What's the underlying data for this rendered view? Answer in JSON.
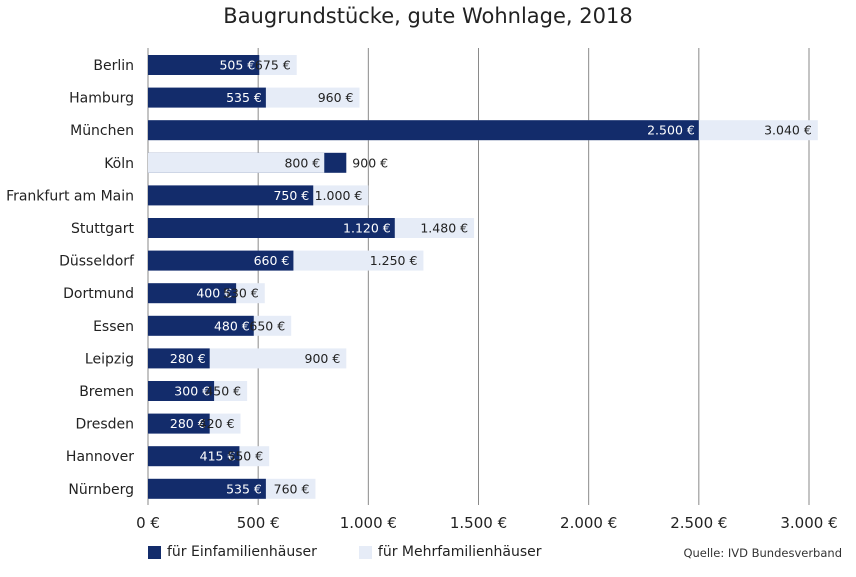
{
  "chart_data": {
    "type": "bar",
    "orientation": "horizontal",
    "title": "Baugrundstücke, gute Wohnlage, 2018",
    "categories": [
      "Berlin",
      "Hamburg",
      "München",
      "Köln",
      "Frankfurt am Main",
      "Stuttgart",
      "Düsseldorf",
      "Dortmund",
      "Essen",
      "Leipzig",
      "Bremen",
      "Dresden",
      "Hannover",
      "Nürnberg"
    ],
    "series": [
      {
        "name": "für Einfamilienhäuser",
        "color": "#132c6b",
        "values": [
          505,
          535,
          2500,
          900,
          750,
          1120,
          660,
          400,
          480,
          280,
          300,
          280,
          415,
          535
        ],
        "labels": [
          "505 €",
          "535 €",
          "2.500 €",
          "900 €",
          "750 €",
          "1.120 €",
          "660 €",
          "400 €",
          "480 €",
          "280 €",
          "300 €",
          "280 €",
          "415 €",
          "535 €"
        ]
      },
      {
        "name": "für Mehrfamilienhäuser",
        "color": "#e6ecf7",
        "values": [
          675,
          960,
          3040,
          800,
          1000,
          1480,
          1250,
          530,
          650,
          900,
          450,
          420,
          550,
          760
        ],
        "labels": [
          "675 €",
          "960 €",
          "3.040 €",
          "800 €",
          "1.000 €",
          "1.480 €",
          "1.250 €",
          "530 €",
          "650 €",
          "900 €",
          "450 €",
          "420 €",
          "550 €",
          "760 €"
        ]
      }
    ],
    "xlim": [
      0,
      3000
    ],
    "xticks": [
      0,
      500,
      1000,
      1500,
      2000,
      2500,
      3000
    ],
    "xtick_labels": [
      "0 €",
      "500 €",
      "1.000 €",
      "1.500 €",
      "2.000 €",
      "2.500 €",
      "3.000 €"
    ],
    "grid": "vertical",
    "legend_position": "bottom-left",
    "source": "Quelle: IVD Bundesverband"
  }
}
